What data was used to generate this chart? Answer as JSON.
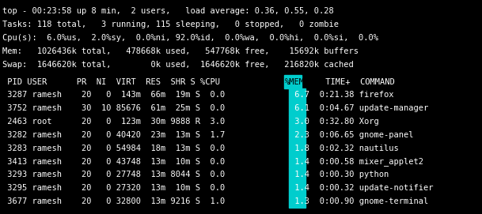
{
  "bg_color": "#000000",
  "text_color": "#ffffff",
  "cyan_color": "#00cdcd",
  "header_text_color": "#000000",
  "font_family": "monospace",
  "top_lines": [
    "top - 00:23:58 up 8 min,  2 users,   load average: 0.36, 0.55, 0.28",
    "Tasks: 118 total,   3 running, 115 sleeping,   0 stopped,   0 zombie",
    "Cpu(s):  6.0%us,  2.0%sy,  0.0%ni, 92.0%id,  0.0%wa,  0.0%hi,  0.0%si,  0.0%",
    "Mem:   1026436k total,   478668k used,   547768k free,    15692k buffers",
    "Swap:  1646620k total,        0k used,  1646620k free,   216820k cached"
  ],
  "header_cols": [
    {
      "text": " PID USER      PR  NI  VIRT  RES  SHR S %CPU ",
      "highlight": false
    },
    {
      "text": "%MEM",
      "highlight": true
    },
    {
      "text": "     TIME+  COMMAND",
      "highlight": false
    }
  ],
  "data_rows": [
    {
      "pre": " 3287 ramesh    20   0  143m  66m  19m S  0.0 ",
      "mem": " 6.7",
      "post": "   0:21.38 firefox"
    },
    {
      "pre": " 3752 ramesh    30  10 85676  61m  25m S  0.0 ",
      "mem": " 6.1",
      "post": "   0:04.67 update-manager"
    },
    {
      "pre": " 2463 root      20   0  123m  30m 9888 R  3.0 ",
      "mem": " 3.0",
      "post": "   0:32.80 Xorg"
    },
    {
      "pre": " 3282 ramesh    20   0 40420  23m  13m S  1.7 ",
      "mem": " 2.3",
      "post": "   0:06.65 gnome-panel"
    },
    {
      "pre": " 3283 ramesh    20   0 54984  18m  13m S  0.0 ",
      "mem": " 1.8",
      "post": "   0:02.32 nautilus"
    },
    {
      "pre": " 3413 ramesh    20   0 43748  13m  10m S  0.0 ",
      "mem": " 1.4",
      "post": "   0:00.58 mixer_applet2"
    },
    {
      "pre": " 3293 ramesh    20   0 27748  13m 8044 S  0.0 ",
      "mem": " 1.4",
      "post": "   0:00.30 python"
    },
    {
      "pre": " 3295 ramesh    20   0 27320  13m  10m S  0.0 ",
      "mem": " 1.4",
      "post": "   0:00.32 update-notifier"
    },
    {
      "pre": " 3677 ramesh    20   0 32800  13m 9216 S  1.0 ",
      "mem": " 1.3",
      "post": "   0:00.90 gnome-terminal"
    }
  ],
  "figsize": [
    6.09,
    2.71
  ],
  "dpi": 100,
  "fontsize": 7.5
}
